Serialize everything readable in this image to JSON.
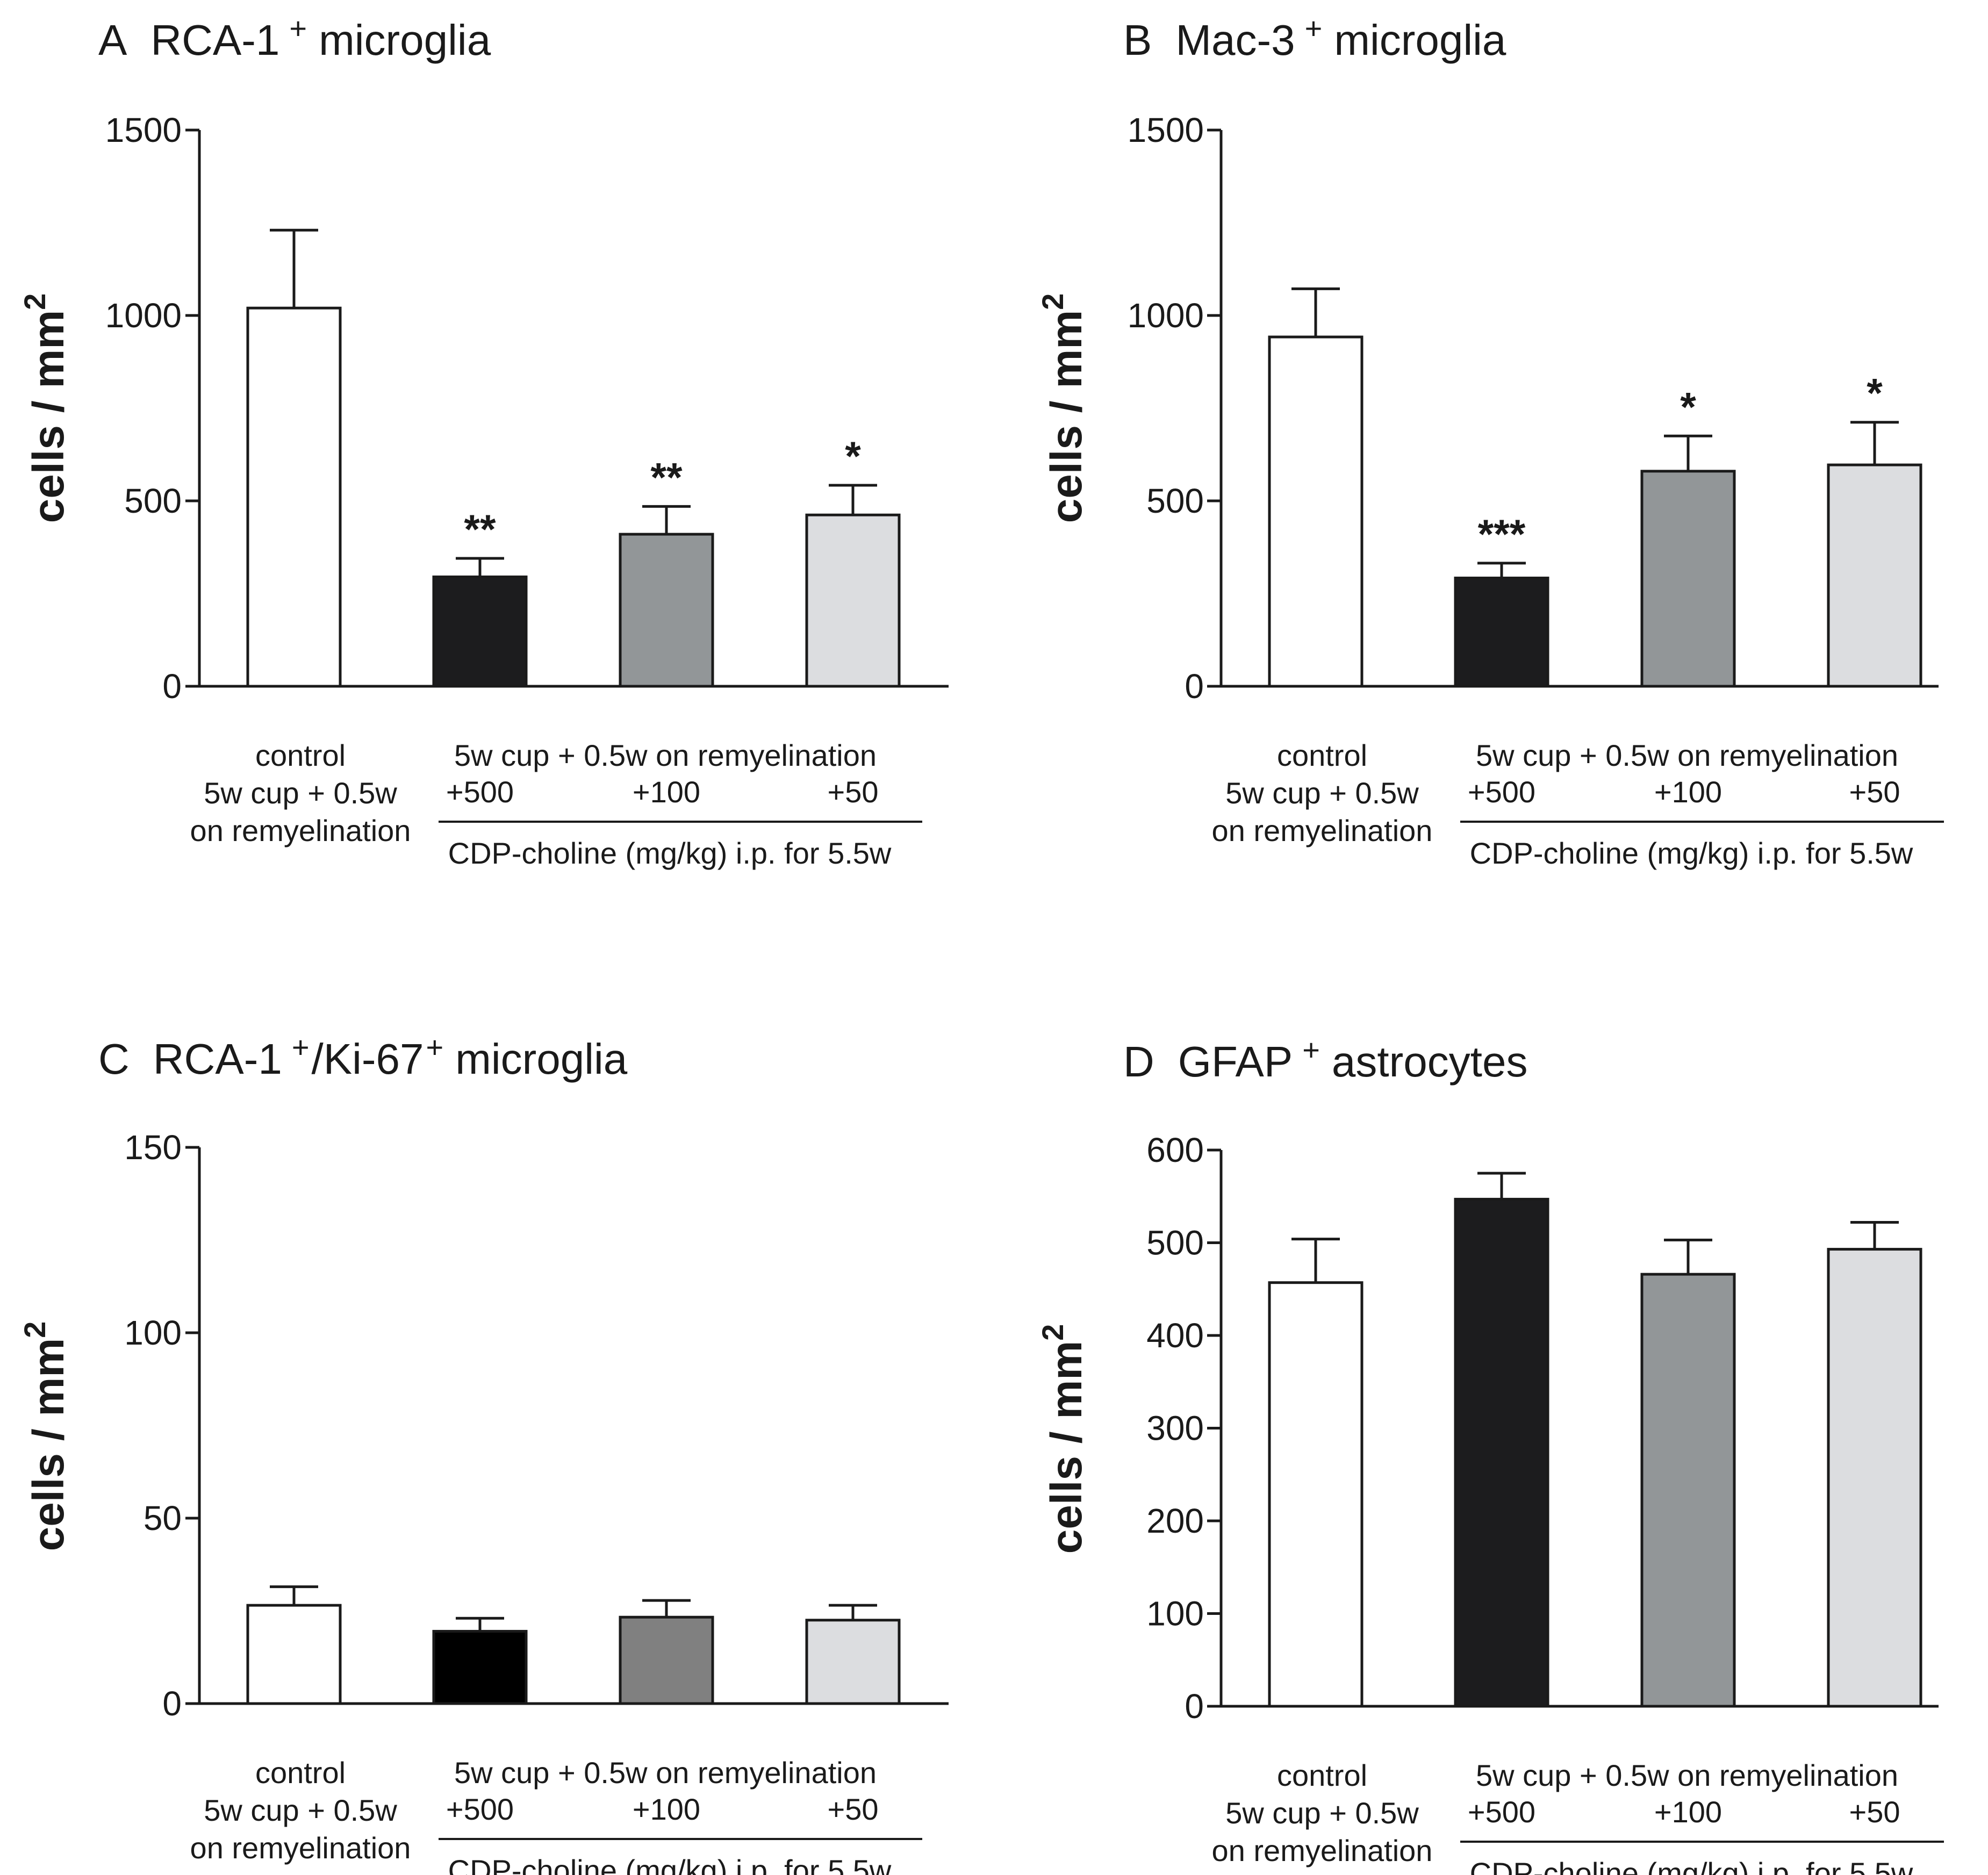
{
  "figure": {
    "ylabel_main": "cells / mm",
    "ylabel_sup": "2",
    "control_label": [
      "control",
      "5w cup + 0.5w",
      "on remyelination"
    ],
    "group_header": "5w cup + 0.5w on remyelination",
    "dose_labels": [
      "+500",
      "+100",
      "+50"
    ],
    "treatment_label": "CDP-choline (mg/kg) i.p. for 5.5w",
    "colors": {
      "axis": "#1a1a1a",
      "outline": "#1a1a1a",
      "control": "#ffffff",
      "dose500": "#1c1c1e",
      "dose100": "#929698",
      "dose100_alt": "#808080",
      "dose50": "#dcdde0"
    }
  },
  "chart_data": [
    {
      "type": "bar",
      "panel": "A",
      "title": "RCA-1",
      "title_sup": "+",
      "title_rest": "microglia",
      "ylabel": "cells / mm2",
      "categories": [
        "control",
        "+500",
        "+100",
        "+50"
      ],
      "values": [
        1020,
        295,
        410,
        462
      ],
      "errors": [
        210,
        50,
        75,
        80
      ],
      "significance": [
        "",
        "**",
        "**",
        "*"
      ],
      "ylim": [
        0,
        1500
      ],
      "yticks": [
        "0",
        "500",
        "1000",
        "1500"
      ],
      "ytick_values": [
        0,
        500,
        1000,
        1500
      ]
    },
    {
      "type": "bar",
      "panel": "B",
      "title": "Mac-3",
      "title_sup": "+",
      "title_rest": "microglia",
      "ylabel": "cells / mm2",
      "categories": [
        "control",
        "+500",
        "+100",
        "+50"
      ],
      "values": [
        942,
        292,
        580,
        597
      ],
      "errors": [
        130,
        40,
        95,
        115
      ],
      "significance": [
        "",
        "***",
        "*",
        "*"
      ],
      "ylim": [
        0,
        1500
      ],
      "yticks": [
        "0",
        "500",
        "1000",
        "1500"
      ],
      "ytick_values": [
        0,
        500,
        1000,
        1500
      ]
    },
    {
      "type": "bar",
      "panel": "C",
      "title": "RCA-1",
      "title_sup": "+",
      "title_mid": "/Ki-67",
      "title_sup2": "+",
      "title_rest": "microglia",
      "ylabel": "cells / mm2",
      "categories": [
        "control",
        "+500",
        "+100",
        "+50"
      ],
      "values": [
        26.5,
        19.5,
        23.3,
        22.5
      ],
      "errors": [
        5,
        3.5,
        4.5,
        4
      ],
      "significance": [
        "",
        "",
        "",
        ""
      ],
      "ylim": [
        0,
        150
      ],
      "yticks": [
        "0",
        "50",
        "100",
        "150"
      ],
      "ytick_values": [
        0,
        50,
        100,
        150
      ]
    },
    {
      "type": "bar",
      "panel": "D",
      "title": "GFAP",
      "title_sup": "+",
      "title_rest": "astrocytes",
      "ylabel": "cells / mm2",
      "categories": [
        "control",
        "+500",
        "+100",
        "+50"
      ],
      "values": [
        457,
        547,
        466,
        493
      ],
      "errors": [
        47,
        28,
        37,
        29
      ],
      "significance": [
        "",
        "",
        "",
        ""
      ],
      "ylim": [
        0,
        600
      ],
      "yticks": [
        "0",
        "100",
        "200",
        "300",
        "400",
        "500",
        "600"
      ],
      "ytick_values": [
        0,
        100,
        200,
        300,
        400,
        500,
        600
      ]
    }
  ]
}
